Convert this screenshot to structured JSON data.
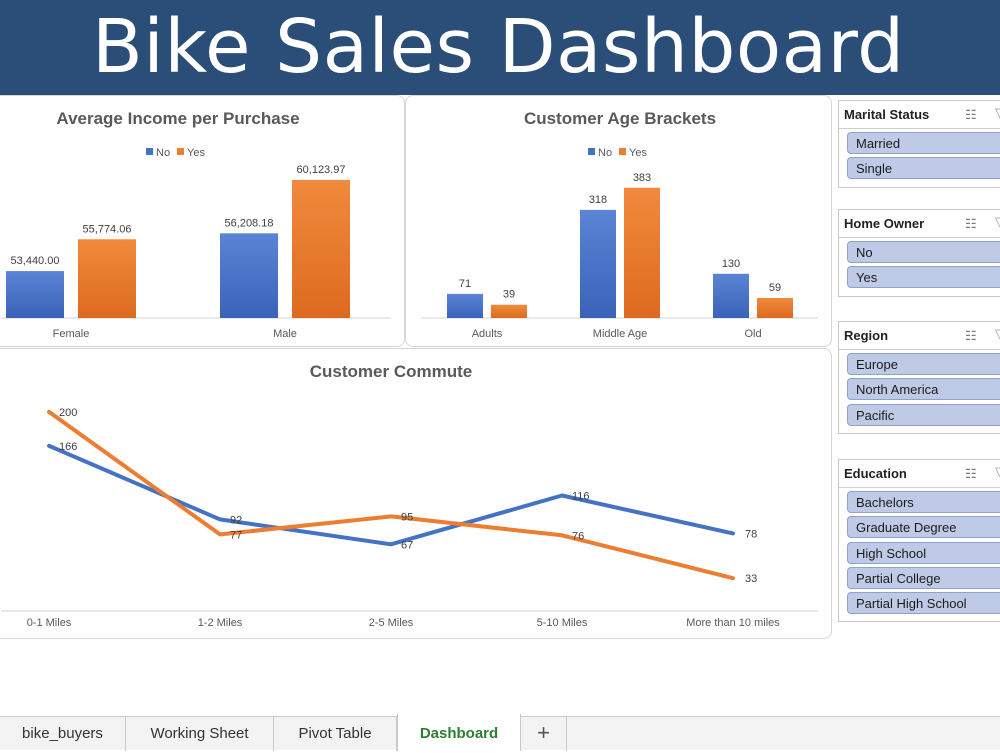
{
  "title": "Bike Sales Dashboard",
  "colors": {
    "no": "#4472c4",
    "yes": "#ed7d31"
  },
  "chart_data": [
    {
      "type": "bar",
      "title": "Average Income per Purchase",
      "categories": [
        "Female",
        "Male"
      ],
      "series": [
        {
          "name": "No",
          "values": [
            53440.0,
            56208.18
          ],
          "labels": [
            "53,440.00",
            "56,208.18"
          ]
        },
        {
          "name": "Yes",
          "values": [
            55774.06,
            60123.97
          ],
          "labels": [
            "55,774.06",
            "60,123.97"
          ]
        }
      ],
      "ylim": [
        50000,
        61000
      ],
      "legend": "top"
    },
    {
      "type": "bar",
      "title": "Customer Age Brackets",
      "categories": [
        "Adults",
        "Middle Age",
        "Old"
      ],
      "series": [
        {
          "name": "No",
          "values": [
            71,
            318,
            130
          ],
          "labels": [
            "71",
            "318",
            "130"
          ]
        },
        {
          "name": "Yes",
          "values": [
            39,
            383,
            59
          ],
          "labels": [
            "39",
            "383",
            "59"
          ]
        }
      ],
      "ylim": [
        0,
        400
      ],
      "legend": "top"
    },
    {
      "type": "line",
      "title": "Customer Commute",
      "categories": [
        "0-1 Miles",
        "1-2 Miles",
        "2-5 Miles",
        "5-10 Miles",
        "More than 10 miles"
      ],
      "series": [
        {
          "name": "No",
          "values": [
            166,
            92,
            67,
            116,
            78
          ],
          "labels": [
            "166",
            "92",
            "67",
            "116",
            "78"
          ]
        },
        {
          "name": "Yes",
          "values": [
            200,
            77,
            95,
            76,
            33
          ],
          "labels": [
            "200",
            "77",
            "95",
            "76",
            "33"
          ]
        }
      ],
      "ylim": [
        0,
        220
      ]
    }
  ],
  "slicers": [
    {
      "title": "Marital Status",
      "items": [
        "Married",
        "Single"
      ]
    },
    {
      "title": "Home Owner",
      "items": [
        "No",
        "Yes"
      ]
    },
    {
      "title": "Region",
      "items": [
        "Europe",
        "North America",
        "Pacific"
      ]
    },
    {
      "title": "Education",
      "items": [
        "Bachelors",
        "Graduate Degree",
        "High School",
        "Partial College",
        "Partial High School"
      ]
    }
  ],
  "slicer_icons": {
    "multi_select": "multi-select-icon",
    "clear_filter": "clear-filter-icon"
  },
  "tabs": [
    {
      "label": "bike_buyers",
      "active": false
    },
    {
      "label": "Working Sheet",
      "active": false
    },
    {
      "label": "Pivot Table",
      "active": false
    },
    {
      "label": "Dashboard",
      "active": true
    }
  ],
  "add_tab_label": "+"
}
